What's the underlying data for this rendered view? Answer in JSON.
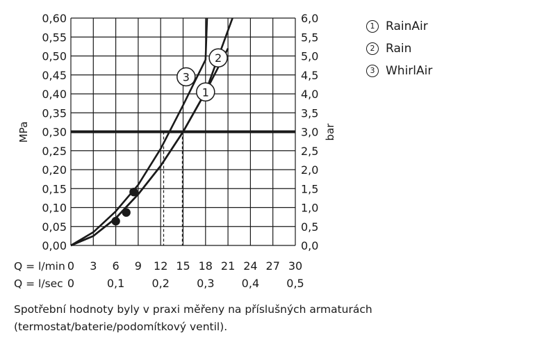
{
  "chart_data": {
    "type": "line",
    "left_axis": {
      "label": "MPa",
      "ylim": [
        0,
        0.6
      ],
      "ticks": [
        "0,00",
        "0,05",
        "0,10",
        "0,15",
        "0,20",
        "0,25",
        "0,30",
        "0,35",
        "0,40",
        "0,45",
        "0,50",
        "0,55",
        "0,60"
      ]
    },
    "right_axis": {
      "label": "bar",
      "ylim": [
        0,
        6
      ],
      "ticks": [
        "0,0",
        "0,5",
        "1,0",
        "1,5",
        "2,0",
        "2,5",
        "3,0",
        "3,5",
        "4,0",
        "4,5",
        "5,0",
        "5,5",
        "6,0"
      ]
    },
    "x_axis_lmin": {
      "label": "Q = l/min",
      "xlim": [
        0,
        30
      ],
      "ticks": [
        {
          "value": 0,
          "label": "0"
        },
        {
          "value": 3,
          "label": "3"
        },
        {
          "value": 6,
          "label": "6"
        },
        {
          "value": 9,
          "label": "9"
        },
        {
          "value": 12,
          "label": "12"
        },
        {
          "value": 15,
          "label": "15"
        },
        {
          "value": 18,
          "label": "18"
        },
        {
          "value": 21,
          "label": "21"
        },
        {
          "value": 24,
          "label": "24"
        },
        {
          "value": 27,
          "label": "27"
        },
        {
          "value": 30,
          "label": "30"
        }
      ]
    },
    "x_axis_lsec": {
      "label": "Q = l/sec",
      "ticks": [
        {
          "value": 0,
          "label": "0"
        },
        {
          "value": 0.1,
          "label": "0,1"
        },
        {
          "value": 0.2,
          "label": "0,2"
        },
        {
          "value": 0.3,
          "label": "0,3"
        },
        {
          "value": 0.4,
          "label": "0,4"
        },
        {
          "value": 0.5,
          "label": "0,5"
        }
      ]
    },
    "grid": true,
    "reference_line": {
      "y": 0.3
    },
    "series": [
      {
        "id": "1",
        "x": [
          0,
          3,
          6,
          9,
          12,
          15,
          18,
          21
        ],
        "y": [
          0,
          0.025,
          0.072,
          0.135,
          0.21,
          0.3,
          0.405,
          0.52
        ],
        "marker_x": 18
      },
      {
        "id": "2",
        "x": [
          21.6
        ],
        "y": [
          0.6
        ],
        "marker_x": 19.7
      },
      {
        "id": "3",
        "x": [
          0,
          3,
          6,
          9,
          12,
          15,
          18,
          18.2
        ],
        "y": [
          0,
          0.035,
          0.09,
          0.16,
          0.255,
          0.37,
          0.49,
          0.6
        ],
        "marker_x": 15.4
      }
    ],
    "highlight_points": [
      {
        "x": 6.0,
        "y": 0.064
      },
      {
        "x": 7.4,
        "y": 0.087
      },
      {
        "x": 8.4,
        "y": 0.141
      }
    ],
    "dashed_markers": [
      {
        "x": 12.4,
        "y": 0.3
      },
      {
        "x": 14.9,
        "y": 0.3
      }
    ]
  },
  "legend": [
    {
      "num": "1",
      "label": "RainAir"
    },
    {
      "num": "2",
      "label": "Rain"
    },
    {
      "num": "3",
      "label": "WhirlAir"
    }
  ],
  "footnote": "Spotřební hodnoty byly v praxi měřeny na příslušných armaturách (termostat/baterie/podomítkový ventil)."
}
